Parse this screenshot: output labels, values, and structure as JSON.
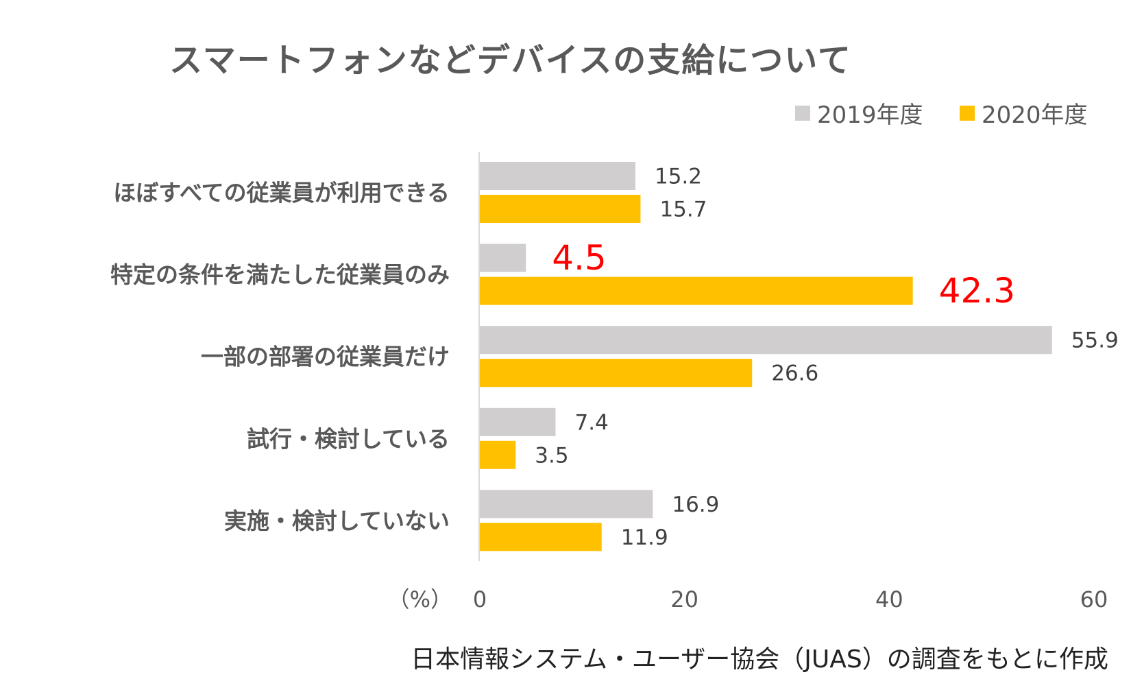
{
  "chart_data": {
    "type": "bar",
    "orientation": "horizontal",
    "title": "スマートフォンなどデバイスの支給について",
    "categories": [
      "ほぼすべての従業員が利用できる",
      "特定の条件を満たした従業員のみ",
      "一部の部署の従業員だけ",
      "試行・検討している",
      "実施・検討していない"
    ],
    "series": [
      {
        "name": "2019年度",
        "color": "#d0cece",
        "values": [
          15.2,
          4.5,
          55.9,
          7.4,
          16.9
        ]
      },
      {
        "name": "2020年度",
        "color": "#ffc000",
        "values": [
          15.7,
          42.3,
          26.6,
          3.5,
          11.9
        ]
      }
    ],
    "highlighted_labels": [
      {
        "series": 0,
        "index": 1
      },
      {
        "series": 1,
        "index": 1
      }
    ],
    "highlight_color": "#ff0000",
    "xlabel": "（%）",
    "xlim": [
      0,
      60
    ],
    "xticks": [
      0,
      20,
      40,
      60
    ],
    "grid": false,
    "legend_position": "top-right"
  },
  "footer": "日本情報システム・ユーザー協会（JUAS）の調査をもとに作成"
}
